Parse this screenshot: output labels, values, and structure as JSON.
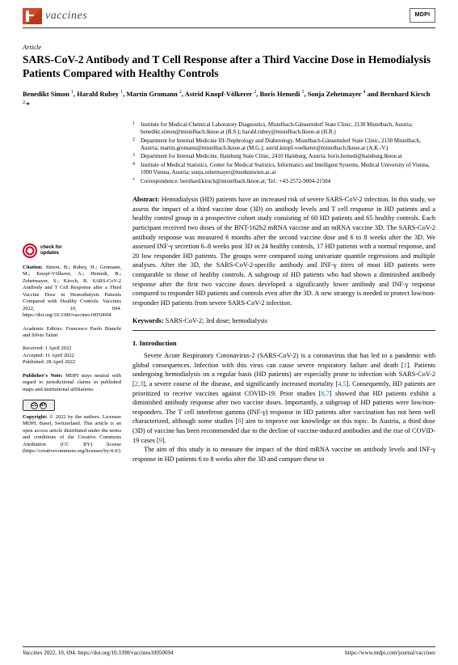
{
  "header": {
    "brand": "vaccines",
    "publisher": "MDPI"
  },
  "article": {
    "type": "Article",
    "title": "SARS-CoV-2 Antibody and T Cell Response after a Third Vaccine Dose in Hemodialysis Patients Compared with Healthy Controls",
    "authors_html": "Benedikt Simon <sup>1</sup>, Harald Rubey <sup>1</sup>, Martin Gromann <sup>2</sup>, Astrid Knopf-Völkerer <sup>2</sup>, Boris Hemedi <sup>3</sup>, Sonja Zehetmayer <sup>4</sup> and Bernhard Kirsch <sup>2,</sup>*"
  },
  "affiliations": [
    {
      "num": "1",
      "text": "Institute for Medical-Chemical Laboratory Diagnostics, Mistelbach-Gänserndorf State Clinic, 2130 Mistelbach, Austria; benedikt.simon@mistelbach.lknoe.at (B.S.); harald.rubey@mistelbach.lknoe.at (H.R.)"
    },
    {
      "num": "2",
      "text": "Department for Internal Medicine III–Nephrology and Diabetology, Mistelbach-Gänserndorf State Clinic, 2130 Mistelbach, Austria; martin.gromann@mistelbach.lknoe.at (M.G.); astrid.knopf-voelkerer@mistelbach.lknoe.at (A.K.-V.)"
    },
    {
      "num": "3",
      "text": "Department for Internal Medicine, Hainburg State Clinic, 2410 Hainburg, Austria; boris.hemedi@hainburg.lknoe.at"
    },
    {
      "num": "4",
      "text": "Institute of Medical Statistics, Center for Medical Statistics, Informatics and Intelligent Systems, Medical University of Vienna, 1090 Vienna, Austria; sonja.zehetmayer@meduniwien.ac.at"
    },
    {
      "num": "*",
      "text": "Correspondence: bernhard.kirsch@mistelbach.lknoe.at; Tel.: +43-2572-9004-21504"
    }
  ],
  "abstract": {
    "label": "Abstract:",
    "text": "Hemodialysis (HD) patients have an increased risk of severe SARS-CoV-2 infection. In this study, we assess the impact of a third vaccine dose (3D) on antibody levels and T cell response in HD patients and a healthy control group in a prospective cohort study consisting of 60 HD patients and 65 healthy controls. Each participant received two doses of the BNT-162b2 mRNA vaccine and an mRNA vaccine 3D. The SARS-CoV-2 antibody response was measured 6 months after the second vaccine dose and 6 to 8 weeks after the 3D. We assessed INF-γ secretion 6–8 weeks post 3D in 24 healthy controls, 17 HD patients with a normal response, and 20 low responder HD patients. The groups were compared using univariate quantile regressions and multiple analyses. After the 3D, the SARS-CoV-2-specific antibody and INF-γ titers of most HD patients were comparable to those of healthy controls. A subgroup of HD patients who had shown a diminished antibody response after the first two vaccine doses developed a significantly lower antibody and INF-γ response compared to responder HD patients and controls even after the 3D. A new strategy is needed to protect low/non-responder HD patients from severe SARS-CoV-2 infection."
  },
  "keywords": {
    "label": "Keywords:",
    "text": "SARS-CoV-2; 3rd dose; hemodialysis"
  },
  "section1": {
    "title": "1. Introduction",
    "para1": "Severe Acute Respiratory Coronavirus-2 (SARS-CoV-2) is a coronavirus that has led to a pandemic with global consequences. Infection with this virus can cause severe respiratory failure and death [1]. Patients undergoing hemodialysis on a regular basis (HD patients) are especially prone to infection with SARS-CoV-2 [2,3], a severe course of the disease, and significantly increased mortality [4,5]. Consequently, HD patients are prioritized to receive vaccines against COVID-19. Prior studies [6,7] showed that HD patients exhibit a diminished antibody response after two vaccine doses. Importantly, a subgroup of HD patients were low/non-responders. The T cell interferon gamma (INF-γ) response in HD patients after vaccination has not been well characterized, although some studies [8] aim to improve our knowledge on this topic. In Austria, a third dose (3D) of vaccine has been recommended due to the decline of vaccine-induced antibodies and the rise of COVID-19 cases [9].",
    "para2": "The aim of this study is to measure the impact of the third mRNA vaccine on antibody levels and INF-γ response in HD patients 6 to 8 weeks after the 3D and compare these to"
  },
  "sidebar": {
    "check_line1": "check for",
    "check_line2": "updates",
    "citation_label": "Citation:",
    "citation": "Simon, B.; Rubey, H.; Gromann, M.; Knopf-Völkerer, A.; Hemedi, B.; Zehetmayer, S.; Kirsch, B. SARS-CoV-2 Antibody and T Cell Response after a Third Vaccine Dose in Hemodialysis Patients Compared with Healthy Controls. Vaccines 2022, 10, 694. https://doi.org/10.3390/vaccines10050694",
    "editors_label": "Academic Editors:",
    "editors": "Francesco Paolo Bianchi and Silvio Tafuri",
    "received": "Received: 1 April 2022",
    "accepted": "Accepted: 11 April 2022",
    "published": "Published: 28 April 2022",
    "note_label": "Publisher's Note:",
    "note": "MDPI stays neutral with regard to jurisdictional claims in published maps and institutional affiliations.",
    "copyright_label": "Copyright:",
    "copyright": "© 2022 by the authors. Licensee MDPI, Basel, Switzerland. This article is an open access article distributed under the terms and conditions of the Creative Commons Attribution (CC BY) license (https://creativecommons.org/licenses/by/4.0/)."
  },
  "footer": {
    "left": "Vaccines 2022, 10, 694. https://doi.org/10.3390/vaccines10050694",
    "right": "https://www.mdpi.com/journal/vaccines"
  }
}
